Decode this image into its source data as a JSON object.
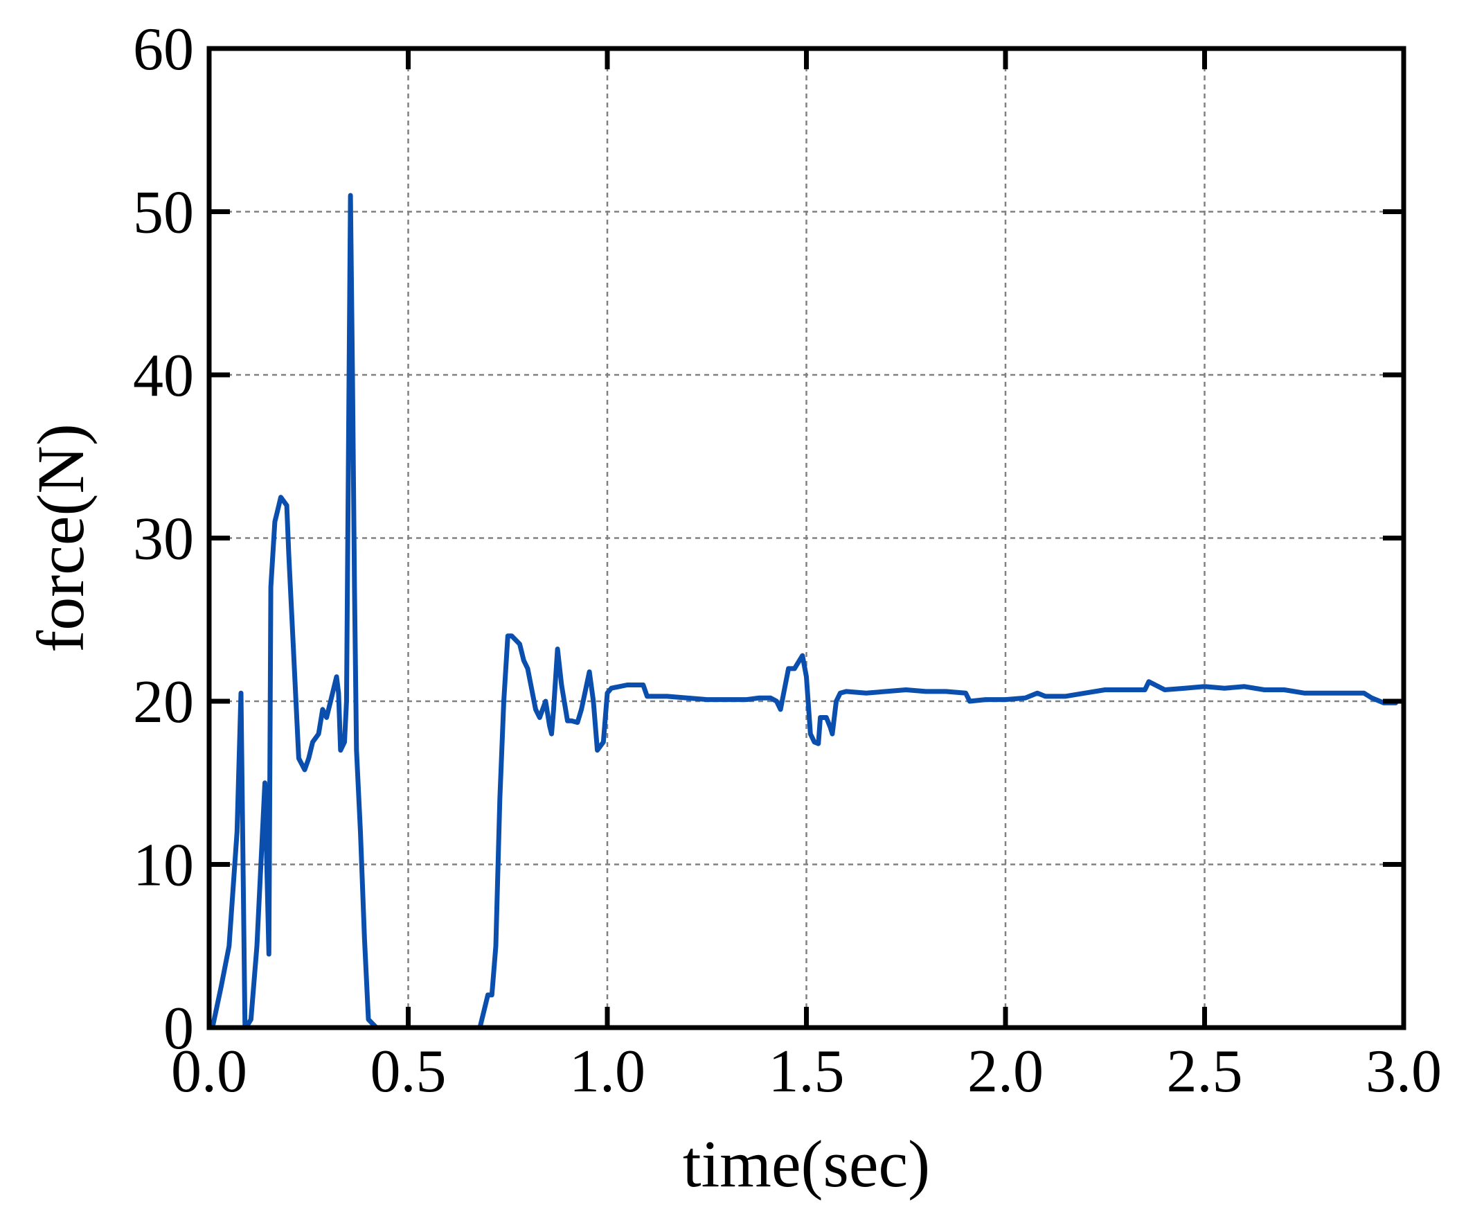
{
  "chart_data": {
    "type": "line",
    "xlabel": "time(sec)",
    "ylabel": "force(N)",
    "xlim": [
      0.0,
      3.0
    ],
    "ylim": [
      0,
      60
    ],
    "xticks": [
      "0.0",
      "0.5",
      "1.0",
      "1.5",
      "2.0",
      "2.5",
      "3.0"
    ],
    "yticks": [
      "0",
      "10",
      "20",
      "30",
      "40",
      "50",
      "60"
    ],
    "grid": true,
    "colors": {
      "series": "#0a4fad"
    },
    "series": [
      {
        "x": [
          0.01,
          0.03,
          0.05,
          0.07,
          0.08,
          0.09,
          0.095,
          0.105,
          0.12,
          0.14,
          0.15,
          0.155,
          0.165,
          0.17,
          0.18,
          0.195,
          0.2,
          0.21,
          0.225,
          0.24,
          0.25,
          0.26,
          0.275,
          0.285,
          0.295,
          0.305,
          0.32,
          0.325,
          0.33,
          0.34,
          0.345,
          0.355,
          0.36,
          0.365,
          0.37,
          0.38,
          0.39,
          0.4,
          0.42,
          0.5,
          0.6,
          0.68,
          0.7,
          0.71,
          0.72,
          0.73,
          0.74,
          0.75,
          0.76,
          0.78,
          0.79,
          0.8,
          0.82,
          0.83,
          0.845,
          0.855,
          0.86,
          0.865,
          0.875,
          0.885,
          0.9,
          0.91,
          0.925,
          0.935,
          0.955,
          0.965,
          0.975,
          0.99,
          1.0,
          1.01,
          1.05,
          1.09,
          1.1,
          1.15,
          1.2,
          1.25,
          1.3,
          1.35,
          1.38,
          1.41,
          1.425,
          1.435,
          1.455,
          1.47,
          1.49,
          1.5,
          1.51,
          1.52,
          1.53,
          1.535,
          1.55,
          1.56,
          1.565,
          1.575,
          1.585,
          1.6,
          1.65,
          1.7,
          1.75,
          1.8,
          1.85,
          1.9,
          1.91,
          1.95,
          2.0,
          2.05,
          2.08,
          2.1,
          2.15,
          2.2,
          2.25,
          2.3,
          2.35,
          2.36,
          2.4,
          2.45,
          2.5,
          2.55,
          2.6,
          2.65,
          2.7,
          2.75,
          2.8,
          2.85,
          2.9,
          2.92,
          2.95,
          2.98
        ],
        "y": [
          0.2,
          2.5,
          5,
          12,
          20.5,
          0,
          0.1,
          0.5,
          5,
          15,
          4.5,
          27,
          31,
          31.5,
          32.5,
          32,
          29,
          24,
          16.5,
          15.8,
          16.5,
          17.5,
          18,
          19.5,
          19,
          20,
          21.5,
          20.5,
          17,
          17.5,
          20,
          51,
          40,
          27,
          17,
          12,
          5.5,
          0.5,
          0,
          0,
          0,
          0,
          2,
          2,
          5,
          14,
          20,
          24,
          24,
          23.5,
          22.5,
          22,
          19.5,
          19,
          20,
          18.5,
          18,
          19.5,
          23.2,
          21,
          18.8,
          18.8,
          18.7,
          19.5,
          21.8,
          20,
          17,
          17.5,
          20.5,
          20.8,
          21,
          21,
          20.3,
          20.3,
          20.2,
          20.1,
          20.1,
          20.1,
          20.2,
          20.2,
          20,
          19.5,
          22,
          22,
          22.8,
          21.5,
          18,
          17.5,
          17.4,
          19,
          19,
          18.4,
          18,
          20,
          20.5,
          20.6,
          20.5,
          20.6,
          20.7,
          20.6,
          20.6,
          20.5,
          20,
          20.1,
          20.1,
          20.2,
          20.5,
          20.3,
          20.3,
          20.5,
          20.7,
          20.7,
          20.7,
          21.2,
          20.7,
          20.8,
          20.9,
          20.8,
          20.9,
          20.7,
          20.7,
          20.5,
          20.5,
          20.5,
          20.5,
          20.2,
          19.9,
          19.9
        ]
      }
    ]
  }
}
